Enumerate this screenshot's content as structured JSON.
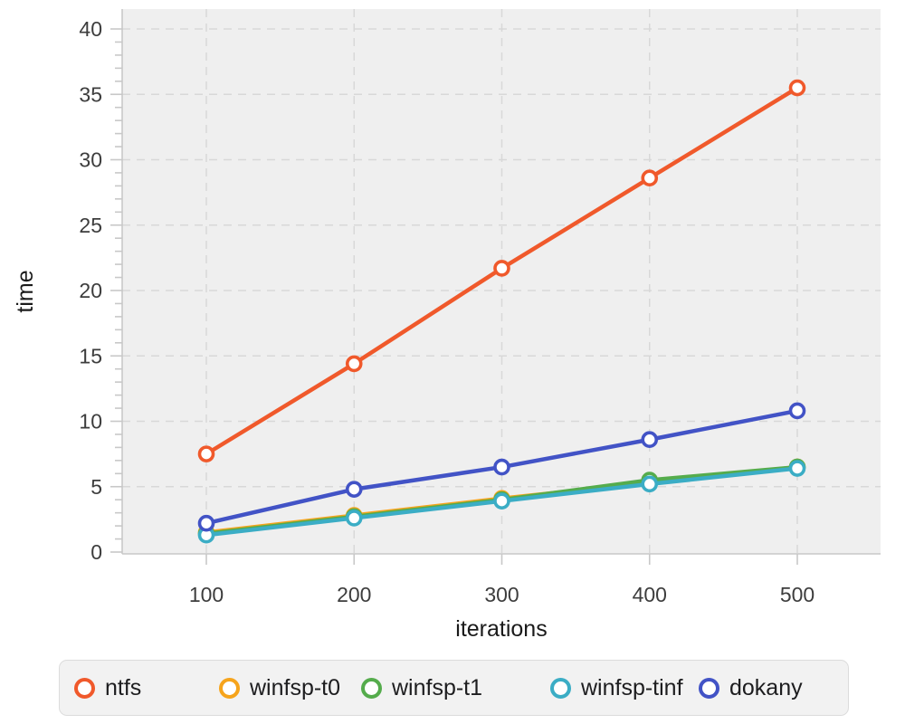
{
  "chart_data": {
    "type": "line",
    "title": "",
    "xlabel": "iterations",
    "ylabel": "time",
    "x": [
      100,
      200,
      300,
      400,
      500
    ],
    "xticks": [
      100,
      200,
      300,
      400,
      500
    ],
    "yticks": [
      0,
      5,
      10,
      15,
      20,
      25,
      30,
      35,
      40
    ],
    "ylim": [
      0,
      40
    ],
    "grid": true,
    "grid_style": "dashed",
    "marker": "open-circle",
    "legend_position": "bottom",
    "plot_bg_color": "#efefef",
    "grid_color": "#d8d8d8",
    "axis_color": "#c8c8c8",
    "tick_label_color": "#3d3d3d",
    "axis_title_color": "#1a1a1a",
    "series": [
      {
        "name": "ntfs",
        "color": "#f0592b",
        "values": [
          7.5,
          14.4,
          21.7,
          28.6,
          35.5
        ]
      },
      {
        "name": "winfsp-t0",
        "color": "#f6a41c",
        "values": [
          1.5,
          2.8,
          4.1,
          5.3,
          6.5
        ]
      },
      {
        "name": "winfsp-t1",
        "color": "#55ac4c",
        "values": [
          1.4,
          2.7,
          4.0,
          5.5,
          6.5
        ]
      },
      {
        "name": "winfsp-tinf",
        "color": "#3badc5",
        "values": [
          1.3,
          2.6,
          3.9,
          5.2,
          6.4
        ]
      },
      {
        "name": "dokany",
        "color": "#4253c6",
        "values": [
          2.2,
          4.8,
          6.5,
          8.6,
          10.8
        ]
      }
    ]
  },
  "legend": {
    "items": [
      {
        "label": "ntfs"
      },
      {
        "label": "winfsp-t0"
      },
      {
        "label": "winfsp-t1"
      },
      {
        "label": "winfsp-tinf"
      },
      {
        "label": "dokany"
      }
    ]
  }
}
